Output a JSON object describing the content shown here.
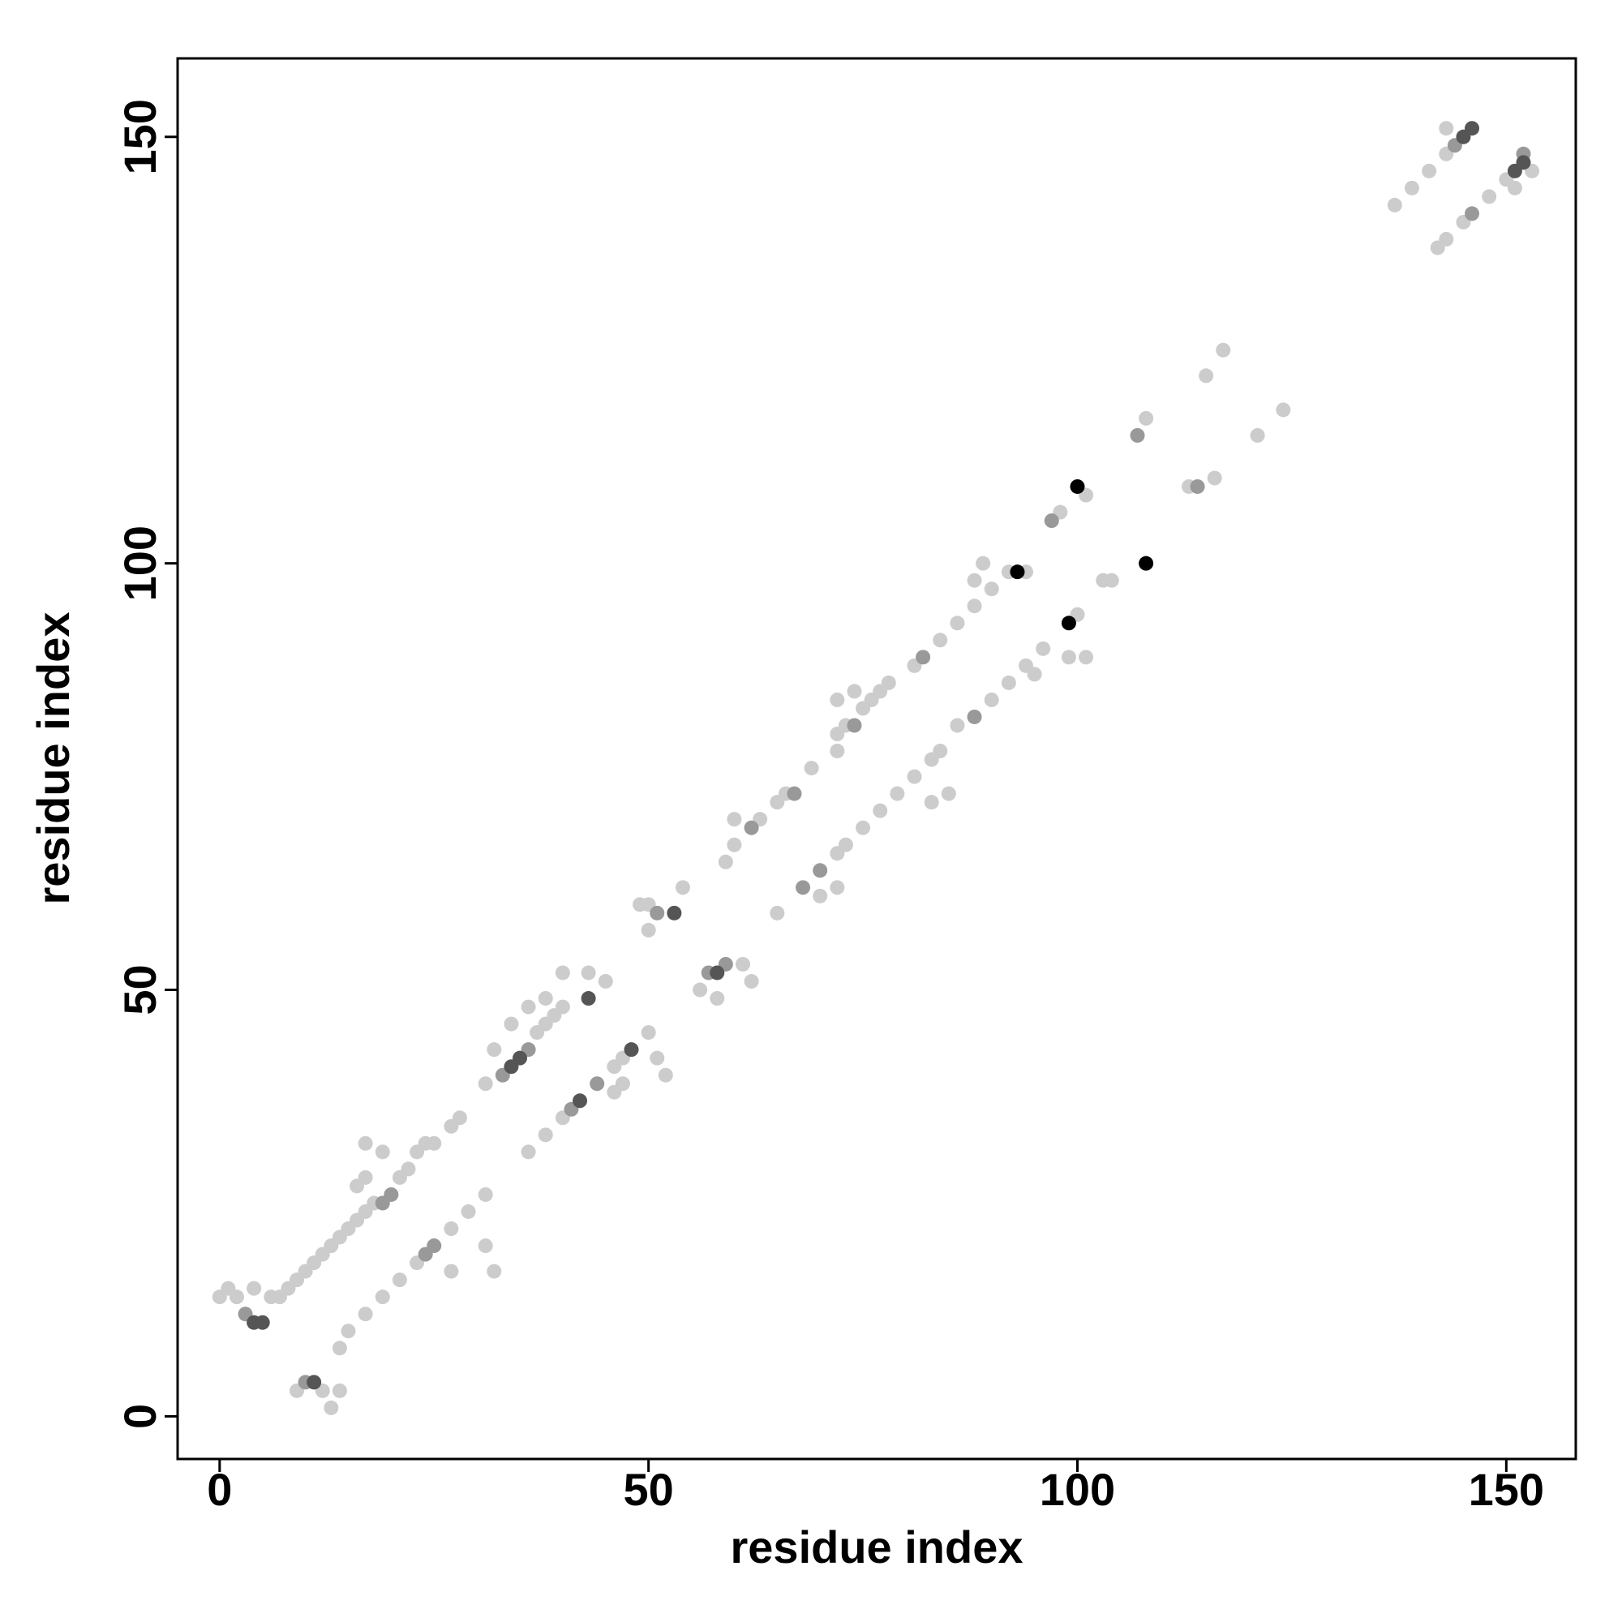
{
  "chart_data": {
    "type": "scatter",
    "x_label": "residue index",
    "y_label": "residue index",
    "xlim": [
      -4.9,
      158.1
    ],
    "ylim": [
      -5,
      159.2
    ],
    "xticks": [
      0,
      50,
      100,
      150
    ],
    "yticks": [
      0,
      50,
      100,
      150
    ],
    "grid": false,
    "series": [
      {
        "color": "#cccccc",
        "x": [
          0,
          1,
          2,
          4,
          6,
          7,
          8,
          9,
          10,
          11,
          12,
          13,
          14,
          15,
          16,
          17,
          18,
          21,
          22,
          16,
          17,
          17,
          19,
          23,
          24,
          25,
          27,
          28,
          31,
          32,
          34,
          37,
          38,
          39,
          40,
          36,
          38,
          40,
          43,
          45,
          49,
          50,
          54,
          50,
          59,
          60,
          63,
          65,
          66,
          69,
          60,
          72,
          73,
          75,
          76,
          77,
          78,
          72,
          74,
          72,
          81,
          84,
          86,
          88,
          90,
          92,
          88,
          89,
          94,
          98,
          101,
          108,
          115,
          117,
          137,
          139,
          141,
          143,
          143,
          9,
          12,
          13,
          14,
          14,
          15,
          17,
          19,
          21,
          23,
          27,
          29,
          31,
          31,
          32,
          27,
          36,
          38,
          40,
          46,
          47,
          50,
          51,
          52,
          47,
          46,
          56,
          61,
          62,
          58,
          65,
          72,
          73,
          70,
          72,
          75,
          77,
          79,
          81,
          83,
          84,
          85,
          83,
          86,
          90,
          92,
          94,
          96,
          99,
          101,
          95,
          100,
          103,
          104,
          113,
          116,
          121,
          124,
          142,
          143,
          145,
          148,
          150,
          153,
          151
        ],
        "y": [
          14,
          15,
          14,
          15,
          14,
          14,
          15,
          16,
          17,
          18,
          19,
          20,
          21,
          22,
          23,
          24,
          25,
          28,
          29,
          27,
          28,
          32,
          31,
          31,
          32,
          32,
          34,
          35,
          39,
          43,
          46,
          45,
          46,
          47,
          48,
          48,
          49,
          52,
          52,
          51,
          60,
          60,
          62,
          57,
          65,
          67,
          70,
          72,
          73,
          76,
          70,
          80,
          81,
          83,
          84,
          85,
          86,
          84,
          85,
          78,
          88,
          91,
          93,
          95,
          97,
          99,
          98,
          100,
          99,
          106,
          108,
          117,
          122,
          125,
          142,
          144,
          146,
          148,
          151,
          3,
          3,
          1,
          3,
          8,
          10,
          12,
          14,
          16,
          18,
          22,
          24,
          26,
          20,
          17,
          17,
          31,
          33,
          35,
          41,
          42,
          45,
          42,
          40,
          39,
          38,
          50,
          53,
          51,
          49,
          59,
          66,
          67,
          61,
          62,
          69,
          71,
          73,
          75,
          77,
          78,
          73,
          72,
          81,
          84,
          86,
          88,
          90,
          89,
          89,
          87,
          94,
          98,
          98,
          109,
          110,
          115,
          118,
          137,
          138,
          140,
          143,
          145,
          146,
          144
        ]
      },
      {
        "color": "#999999",
        "x": [
          3,
          10,
          20,
          19,
          33,
          36,
          41,
          44,
          25,
          24,
          51,
          59,
          57,
          67,
          68,
          70,
          74,
          82,
          88,
          97,
          107,
          114,
          146,
          152,
          144,
          62
        ],
        "y": [
          12,
          4,
          26,
          25,
          40,
          43,
          36,
          39,
          20,
          19,
          59,
          53,
          52,
          73,
          62,
          64,
          81,
          89,
          82,
          105,
          115,
          109,
          141,
          148,
          149,
          69
        ]
      },
      {
        "color": "#555555",
        "x": [
          4,
          5,
          11,
          35,
          42,
          43,
          48,
          53,
          58,
          145,
          146,
          151,
          152,
          34
        ],
        "y": [
          11,
          11,
          4,
          42,
          37,
          49,
          43,
          59,
          52,
          150,
          151,
          146,
          147,
          41
        ]
      },
      {
        "color": "#000000",
        "x": [
          93,
          100,
          99,
          108
        ],
        "y": [
          99,
          109,
          93,
          100
        ]
      }
    ]
  }
}
